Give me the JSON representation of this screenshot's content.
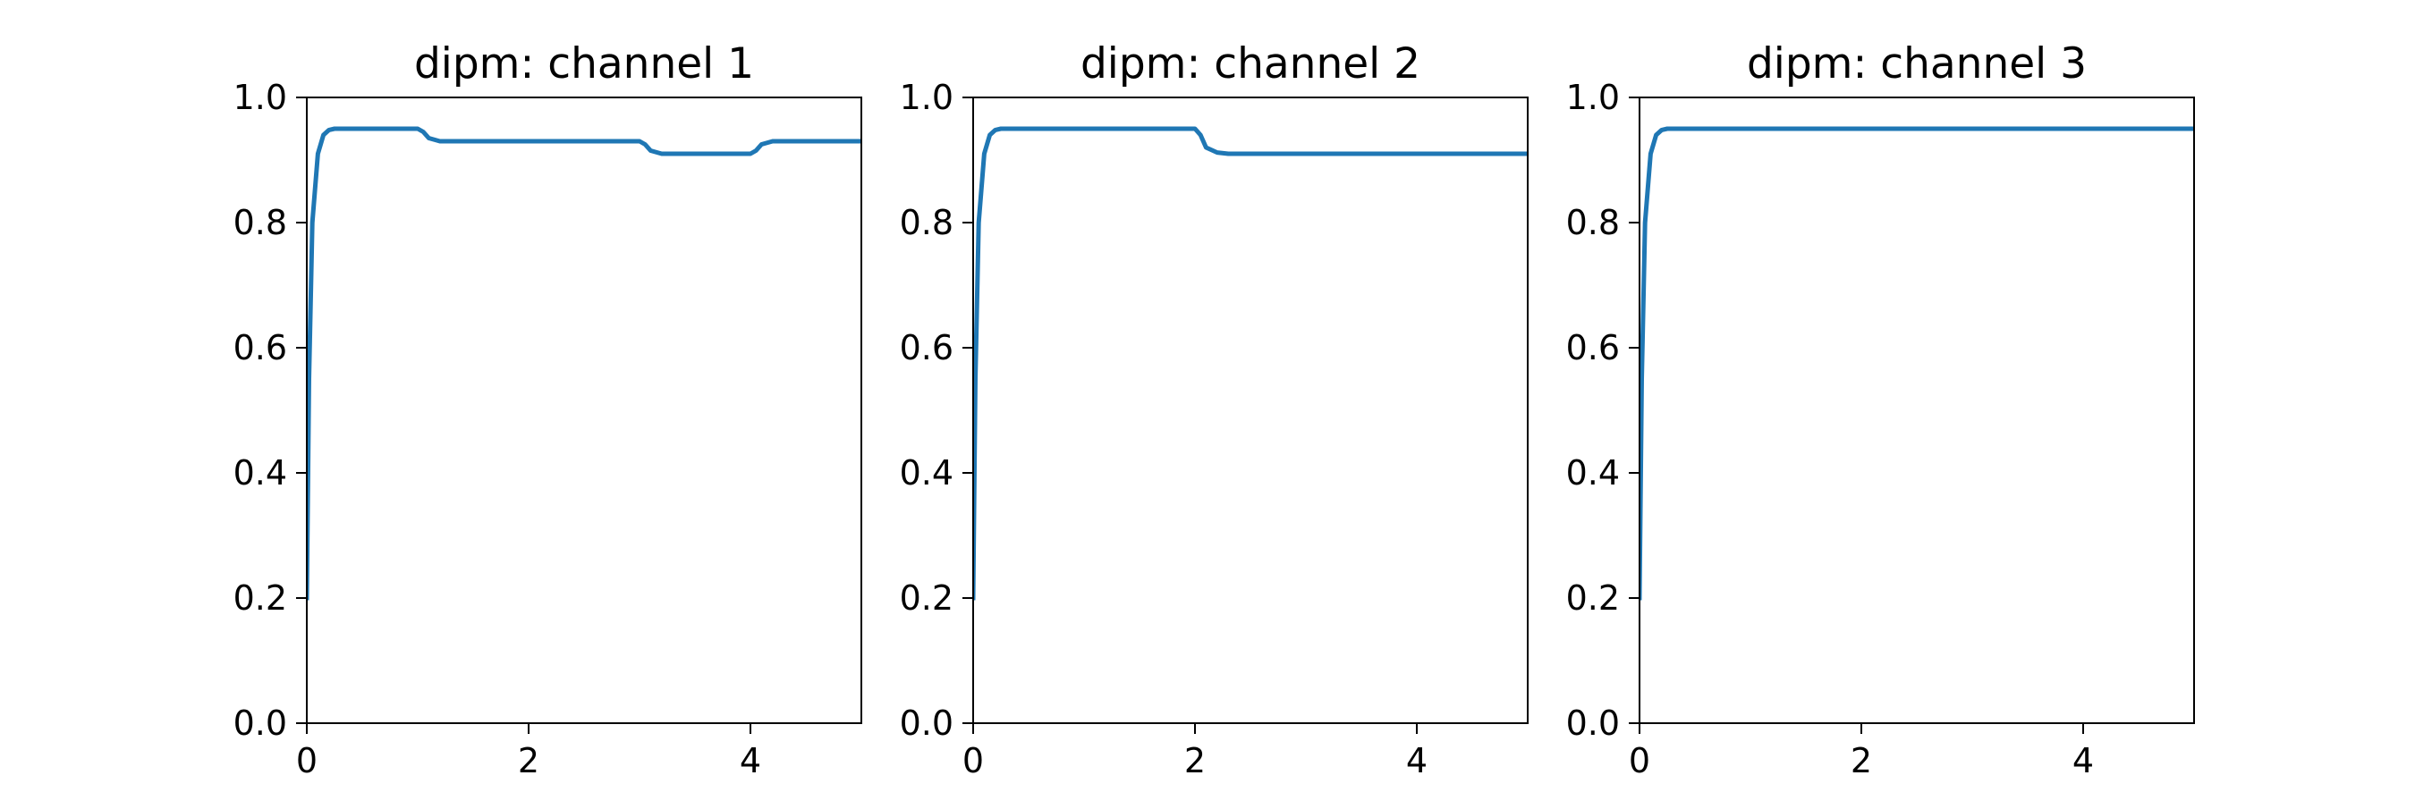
{
  "figure": {
    "panels": 3
  },
  "chart_data": [
    {
      "type": "line",
      "title": "dipm: channel 1",
      "xlabel": "",
      "ylabel": "",
      "xlim": [
        0,
        5
      ],
      "ylim": [
        0,
        1.0
      ],
      "xticks": [
        0,
        2,
        4
      ],
      "xtick_labels": [
        "0",
        "2",
        "4"
      ],
      "yticks": [
        0.0,
        0.2,
        0.4,
        0.6,
        0.8,
        1.0
      ],
      "ytick_labels": [
        "0.0",
        "0.2",
        "0.4",
        "0.6",
        "0.8",
        "1.0"
      ],
      "grid": false,
      "line_color": "#1f77b4",
      "series": [
        {
          "x": [
            0,
            0.02,
            0.05,
            0.1,
            0.15,
            0.2,
            0.25,
            0.3,
            1.0,
            1.05,
            1.1,
            1.2,
            1.3,
            3.0,
            3.05,
            3.1,
            3.2,
            3.3,
            4.0,
            4.05,
            4.1,
            4.2,
            4.3,
            5.0
          ],
          "y": [
            0.2,
            0.55,
            0.8,
            0.91,
            0.94,
            0.948,
            0.95,
            0.95,
            0.95,
            0.945,
            0.935,
            0.93,
            0.93,
            0.93,
            0.925,
            0.915,
            0.91,
            0.91,
            0.91,
            0.915,
            0.925,
            0.93,
            0.93,
            0.93
          ]
        }
      ]
    },
    {
      "type": "line",
      "title": "dipm: channel 2",
      "xlabel": "",
      "ylabel": "",
      "xlim": [
        0,
        5
      ],
      "ylim": [
        0,
        1.0
      ],
      "xticks": [
        0,
        2,
        4
      ],
      "xtick_labels": [
        "0",
        "2",
        "4"
      ],
      "yticks": [
        0.0,
        0.2,
        0.4,
        0.6,
        0.8,
        1.0
      ],
      "ytick_labels": [
        "0.0",
        "0.2",
        "0.4",
        "0.6",
        "0.8",
        "1.0"
      ],
      "grid": false,
      "line_color": "#1f77b4",
      "series": [
        {
          "x": [
            0,
            0.02,
            0.05,
            0.1,
            0.15,
            0.2,
            0.25,
            0.3,
            2.0,
            2.05,
            2.1,
            2.2,
            2.3,
            5.0
          ],
          "y": [
            0.2,
            0.55,
            0.8,
            0.91,
            0.94,
            0.948,
            0.95,
            0.95,
            0.95,
            0.94,
            0.92,
            0.912,
            0.91,
            0.91
          ]
        }
      ]
    },
    {
      "type": "line",
      "title": "dipm: channel 3",
      "xlabel": "",
      "ylabel": "",
      "xlim": [
        0,
        5
      ],
      "ylim": [
        0,
        1.0
      ],
      "xticks": [
        0,
        2,
        4
      ],
      "xtick_labels": [
        "0",
        "2",
        "4"
      ],
      "yticks": [
        0.0,
        0.2,
        0.4,
        0.6,
        0.8,
        1.0
      ],
      "ytick_labels": [
        "0.0",
        "0.2",
        "0.4",
        "0.6",
        "0.8",
        "1.0"
      ],
      "grid": false,
      "line_color": "#1f77b4",
      "series": [
        {
          "x": [
            0,
            0.02,
            0.05,
            0.1,
            0.15,
            0.2,
            0.25,
            0.3,
            5.0
          ],
          "y": [
            0.2,
            0.55,
            0.8,
            0.91,
            0.94,
            0.948,
            0.95,
            0.95,
            0.95
          ]
        }
      ]
    }
  ]
}
